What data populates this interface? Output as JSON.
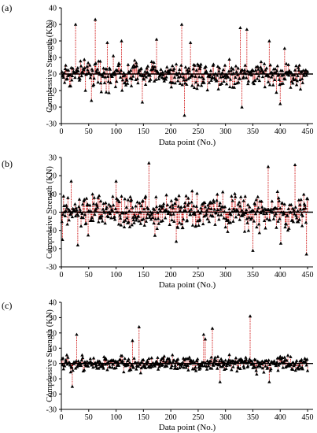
{
  "chart_data": [
    {
      "type": "scatter",
      "panel_label": "(a)",
      "xlabel": "Data point (No.)",
      "ylabel": "Compressive Strength (KN)",
      "xlim": [
        0,
        460
      ],
      "ylim": [
        -30,
        40
      ],
      "x_ticks": [
        0,
        50,
        100,
        150,
        200,
        250,
        300,
        350,
        400,
        450
      ],
      "y_ticks": [
        -30,
        -20,
        -10,
        0,
        10,
        20,
        30,
        40
      ],
      "marker": "triangle",
      "stem_color": "#cc0000",
      "n_points": 450,
      "amplitude": 9,
      "highlights": [
        {
          "x": 62,
          "y": 33
        },
        {
          "x": 26,
          "y": 30
        },
        {
          "x": 220,
          "y": 30
        },
        {
          "x": 327,
          "y": 28
        },
        {
          "x": 339,
          "y": 27
        },
        {
          "x": 174,
          "y": 21
        },
        {
          "x": 110,
          "y": 20
        },
        {
          "x": 236,
          "y": 19
        },
        {
          "x": 380,
          "y": 20
        },
        {
          "x": 84,
          "y": 19
        },
        {
          "x": 225,
          "y": -25
        },
        {
          "x": 330,
          "y": -20
        },
        {
          "x": 148,
          "y": -17
        },
        {
          "x": 400,
          "y": -18
        },
        {
          "x": 55,
          "y": -16
        }
      ]
    },
    {
      "type": "scatter",
      "panel_label": "(b)",
      "xlabel": "Data point (No.)",
      "ylabel": "Compressive Strength (KN)",
      "xlim": [
        0,
        460
      ],
      "ylim": [
        -30,
        30
      ],
      "x_ticks": [
        0,
        50,
        100,
        150,
        200,
        250,
        300,
        350,
        400,
        450
      ],
      "y_ticks": [
        -30,
        -20,
        -10,
        0,
        10,
        20,
        30
      ],
      "marker": "triangle",
      "stem_color": "#cc0000",
      "n_points": 450,
      "amplitude": 10,
      "highlights": [
        {
          "x": 160,
          "y": 27
        },
        {
          "x": 427,
          "y": 26
        },
        {
          "x": 378,
          "y": 25
        },
        {
          "x": 18,
          "y": 17
        },
        {
          "x": 100,
          "y": 17
        },
        {
          "x": 350,
          "y": -21
        },
        {
          "x": 448,
          "y": -23
        },
        {
          "x": 30,
          "y": -18
        },
        {
          "x": 2,
          "y": -15
        },
        {
          "x": 210,
          "y": -16
        }
      ]
    },
    {
      "type": "scatter",
      "panel_label": "(c)",
      "xlabel": "Data point (No.)",
      "ylabel": "Compressive Strength (KN)",
      "xlim": [
        0,
        460
      ],
      "ylim": [
        -30,
        40
      ],
      "x_ticks": [
        0,
        50,
        100,
        150,
        200,
        250,
        300,
        350,
        400,
        450
      ],
      "y_ticks": [
        -30,
        -20,
        -10,
        0,
        10,
        20,
        30,
        40
      ],
      "marker": "triangle",
      "stem_color": "#cc0000",
      "n_points": 450,
      "amplitude": 5,
      "highlights": [
        {
          "x": 345,
          "y": 31
        },
        {
          "x": 142,
          "y": 24
        },
        {
          "x": 276,
          "y": 23
        },
        {
          "x": 28,
          "y": 19
        },
        {
          "x": 260,
          "y": 19
        },
        {
          "x": 263,
          "y": 16
        },
        {
          "x": 130,
          "y": 15
        },
        {
          "x": 20,
          "y": -15
        },
        {
          "x": 290,
          "y": -12
        },
        {
          "x": 380,
          "y": -12
        }
      ]
    }
  ]
}
